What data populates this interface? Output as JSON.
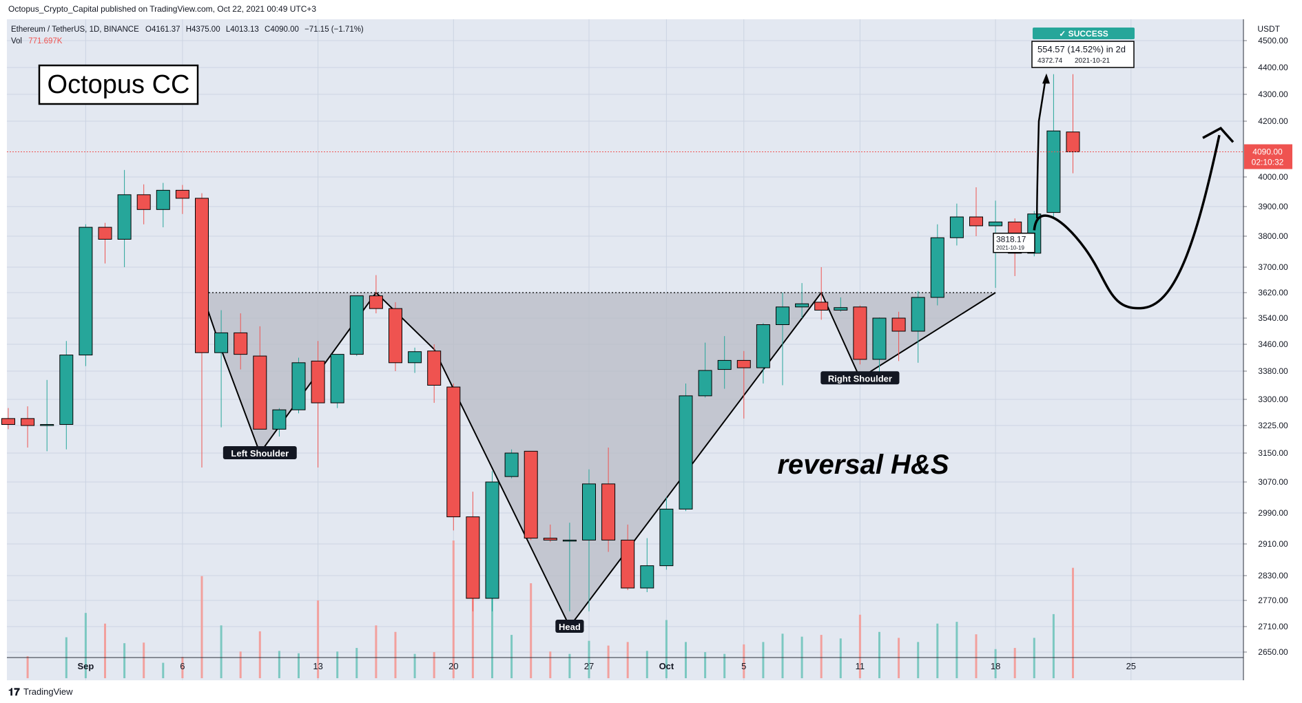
{
  "page": {
    "publisher_line": "Octopus_Crypto_Capital published on TradingView.com, Oct 22, 2021 00:49 UTC+3",
    "footer_brand": "TradingView"
  },
  "legend": {
    "symbol_line": "Ethereum / TetherUS, 1D, BINANCE",
    "o_label": "O",
    "o_value": "4161.37",
    "h_label": "H",
    "h_value": "4375.00",
    "l_label": "L",
    "l_value": "4013.13",
    "c_label": "C",
    "c_value": "4090.00",
    "change": "−71.15 (−1.71%)",
    "vol_label": "Vol",
    "vol_value": "771.697K"
  },
  "logo": {
    "text": "Octopus CC"
  },
  "colors": {
    "up": "#26a69a",
    "down": "#ef5350",
    "vol_up": "#7cc8c1",
    "vol_down": "#f2a09d",
    "grid": "#ccd4e2",
    "plot_bg": "#e3e8f1",
    "pattern_fill": "#b8bbc4"
  },
  "chart_data": {
    "type": "candlestick",
    "symbol": "Ethereum / TetherUS",
    "interval": "1D",
    "exchange": "BINANCE",
    "currency": "USDT",
    "y_axis_ticks": [
      4500,
      4400,
      4300,
      4200,
      4000,
      3900,
      3800,
      3700,
      3620,
      3540,
      3460,
      3380,
      3300,
      3225,
      3150,
      3070,
      2990,
      2910,
      2830,
      2770,
      2710,
      2650
    ],
    "y_axis_labels": [
      "4500.00",
      "4400.00",
      "4300.00",
      "4200.00",
      "4000.00",
      "3900.00",
      "3800.00",
      "3700.00",
      "3620.00",
      "3540.00",
      "3460.00",
      "3380.00",
      "3300.00",
      "3225.00",
      "3150.00",
      "3070.00",
      "2990.00",
      "2910.00",
      "2830.00",
      "2770.00",
      "2710.00",
      "2650.00"
    ],
    "x_axis_labels": [
      {
        "date": "2021-09-01",
        "label": "Sep"
      },
      {
        "date": "2021-09-06",
        "label": "6"
      },
      {
        "date": "2021-09-13",
        "label": "13"
      },
      {
        "date": "2021-09-20",
        "label": "20"
      },
      {
        "date": "2021-09-27",
        "label": "27"
      },
      {
        "date": "2021-10-01",
        "label": "Oct"
      },
      {
        "date": "2021-10-05",
        "label": "5"
      },
      {
        "date": "2021-10-11",
        "label": "11"
      },
      {
        "date": "2021-10-18",
        "label": "18"
      },
      {
        "date": "2021-10-25",
        "label": "25"
      }
    ],
    "candles": [
      {
        "date": "2021-08-28",
        "o": 3245,
        "h": 3275,
        "l": 3215,
        "c": 3228,
        "vol": 0
      },
      {
        "date": "2021-08-29",
        "o": 3245,
        "h": 3280,
        "l": 3165,
        "c": 3225,
        "vol": 37
      },
      {
        "date": "2021-08-30",
        "o": 3225,
        "h": 3355,
        "l": 3155,
        "c": 3228,
        "vol": 0
      },
      {
        "date": "2021-08-31",
        "o": 3228,
        "h": 3470,
        "l": 3160,
        "c": 3428,
        "vol": 69
      },
      {
        "date": "2021-09-01",
        "o": 3428,
        "h": 3840,
        "l": 3395,
        "c": 3830,
        "vol": 110
      },
      {
        "date": "2021-09-02",
        "o": 3830,
        "h": 3845,
        "l": 3712,
        "c": 3790,
        "vol": 92
      },
      {
        "date": "2021-09-03",
        "o": 3790,
        "h": 4025,
        "l": 3700,
        "c": 3940,
        "vol": 59
      },
      {
        "date": "2021-09-04",
        "o": 3940,
        "h": 3975,
        "l": 3840,
        "c": 3890,
        "vol": 60
      },
      {
        "date": "2021-09-05",
        "o": 3890,
        "h": 3980,
        "l": 3830,
        "c": 3955,
        "vol": 26
      },
      {
        "date": "2021-09-06",
        "o": 3955,
        "h": 3973,
        "l": 3875,
        "c": 3928,
        "vol": 36
      },
      {
        "date": "2021-09-07",
        "o": 3928,
        "h": 3945,
        "l": 3110,
        "c": 3435,
        "vol": 172
      },
      {
        "date": "2021-09-08",
        "o": 3435,
        "h": 3565,
        "l": 3220,
        "c": 3495,
        "vol": 89
      },
      {
        "date": "2021-09-09",
        "o": 3495,
        "h": 3555,
        "l": 3385,
        "c": 3430,
        "vol": 45
      },
      {
        "date": "2021-09-10",
        "o": 3425,
        "h": 3515,
        "l": 3215,
        "c": 3215,
        "vol": 79
      },
      {
        "date": "2021-09-11",
        "o": 3215,
        "h": 3275,
        "l": 3195,
        "c": 3270,
        "vol": 46
      },
      {
        "date": "2021-09-12",
        "o": 3270,
        "h": 3420,
        "l": 3260,
        "c": 3405,
        "vol": 42
      },
      {
        "date": "2021-09-13",
        "o": 3410,
        "h": 3470,
        "l": 3110,
        "c": 3290,
        "vol": 131
      },
      {
        "date": "2021-09-14",
        "o": 3290,
        "h": 3430,
        "l": 3275,
        "c": 3430,
        "vol": 45
      },
      {
        "date": "2021-09-15",
        "o": 3430,
        "h": 3600,
        "l": 3425,
        "c": 3610,
        "vol": 51
      },
      {
        "date": "2021-09-16",
        "o": 3610,
        "h": 3675,
        "l": 3555,
        "c": 3570,
        "vol": 89
      },
      {
        "date": "2021-09-17",
        "o": 3570,
        "h": 3590,
        "l": 3380,
        "c": 3405,
        "vol": 78
      },
      {
        "date": "2021-09-18",
        "o": 3405,
        "h": 3450,
        "l": 3375,
        "c": 3438,
        "vol": 41
      },
      {
        "date": "2021-09-19",
        "o": 3440,
        "h": 3460,
        "l": 3290,
        "c": 3340,
        "vol": 44
      },
      {
        "date": "2021-09-20",
        "o": 3335,
        "h": 3345,
        "l": 2945,
        "c": 2980,
        "vol": 232
      },
      {
        "date": "2021-09-21",
        "o": 2980,
        "h": 3045,
        "l": 2745,
        "c": 2775,
        "vol": 200
      },
      {
        "date": "2021-09-22",
        "o": 2775,
        "h": 3100,
        "l": 2745,
        "c": 3070,
        "vol": 138
      },
      {
        "date": "2021-09-23",
        "o": 3085,
        "h": 3160,
        "l": 3080,
        "c": 3150,
        "vol": 73
      },
      {
        "date": "2021-09-24",
        "o": 3155,
        "h": 3155,
        "l": 2920,
        "c": 2925,
        "vol": 160
      },
      {
        "date": "2021-09-25",
        "o": 2925,
        "h": 2960,
        "l": 2915,
        "c": 2920,
        "vol": 45
      },
      {
        "date": "2021-09-26",
        "o": 2920,
        "h": 2965,
        "l": 2745,
        "c": 2920,
        "vol": 41
      },
      {
        "date": "2021-09-27",
        "o": 2920,
        "h": 3105,
        "l": 2745,
        "c": 3065,
        "vol": 63
      },
      {
        "date": "2021-09-28",
        "o": 3065,
        "h": 3165,
        "l": 2890,
        "c": 2920,
        "vol": 55
      },
      {
        "date": "2021-09-29",
        "o": 2920,
        "h": 2960,
        "l": 2795,
        "c": 2800,
        "vol": 61
      },
      {
        "date": "2021-09-30",
        "o": 2800,
        "h": 2925,
        "l": 2790,
        "c": 2855,
        "vol": 46
      },
      {
        "date": "2021-10-01",
        "o": 2855,
        "h": 3030,
        "l": 2845,
        "c": 3000,
        "vol": 98
      },
      {
        "date": "2021-10-02",
        "o": 3000,
        "h": 3345,
        "l": 2995,
        "c": 3310,
        "vol": 61
      },
      {
        "date": "2021-10-03",
        "o": 3310,
        "h": 3465,
        "l": 3305,
        "c": 3382,
        "vol": 44
      },
      {
        "date": "2021-10-04",
        "o": 3385,
        "h": 3485,
        "l": 3330,
        "c": 3412,
        "vol": 41
      },
      {
        "date": "2021-10-05",
        "o": 3412,
        "h": 3440,
        "l": 3245,
        "c": 3390,
        "vol": 57
      },
      {
        "date": "2021-10-06",
        "o": 3390,
        "h": 3525,
        "l": 3345,
        "c": 3520,
        "vol": 61
      },
      {
        "date": "2021-10-07",
        "o": 3520,
        "h": 3620,
        "l": 3340,
        "c": 3575,
        "vol": 75
      },
      {
        "date": "2021-10-08",
        "o": 3575,
        "h": 3650,
        "l": 3540,
        "c": 3585,
        "vol": 70
      },
      {
        "date": "2021-10-09",
        "o": 3590,
        "h": 3700,
        "l": 3535,
        "c": 3565,
        "vol": 73
      },
      {
        "date": "2021-10-10",
        "o": 3565,
        "h": 3605,
        "l": 3560,
        "c": 3573,
        "vol": 67
      },
      {
        "date": "2021-10-11",
        "o": 3575,
        "h": 3580,
        "l": 3400,
        "c": 3415,
        "vol": 107
      },
      {
        "date": "2021-10-12",
        "o": 3415,
        "h": 3542,
        "l": 3365,
        "c": 3540,
        "vol": 78
      },
      {
        "date": "2021-10-13",
        "o": 3540,
        "h": 3560,
        "l": 3410,
        "c": 3500,
        "vol": 68
      },
      {
        "date": "2021-10-14",
        "o": 3500,
        "h": 3625,
        "l": 3405,
        "c": 3605,
        "vol": 61
      },
      {
        "date": "2021-10-15",
        "o": 3605,
        "h": 3840,
        "l": 3580,
        "c": 3795,
        "vol": 92
      },
      {
        "date": "2021-10-16",
        "o": 3795,
        "h": 3910,
        "l": 3770,
        "c": 3865,
        "vol": 95
      },
      {
        "date": "2021-10-17",
        "o": 3865,
        "h": 3965,
        "l": 3800,
        "c": 3835,
        "vol": 74
      },
      {
        "date": "2021-10-18",
        "o": 3835,
        "h": 3920,
        "l": 3635,
        "c": 3848,
        "vol": 49
      },
      {
        "date": "2021-10-19",
        "o": 3848,
        "h": 3860,
        "l": 3672,
        "c": 3745,
        "vol": 51
      },
      {
        "date": "2021-10-20",
        "o": 3745,
        "h": 3885,
        "l": 3735,
        "c": 3875,
        "vol": 68
      },
      {
        "date": "2021-10-21",
        "o": 3880,
        "h": 4375,
        "l": 3865,
        "c": 4165,
        "vol": 108
      },
      {
        "date": "2021-10-22",
        "o": 4161.37,
        "h": 4375,
        "l": 4013.13,
        "c": 4090,
        "vol": 186
      }
    ],
    "price_line": {
      "value": 4090.0,
      "label": "4090.00",
      "countdown": "02:10:32"
    },
    "neckline": {
      "value": 3620,
      "from": "2021-09-07",
      "to": "2021-10-18"
    },
    "pattern": {
      "name": "reversal H&S",
      "labels": [
        {
          "text": "Left Shoulder",
          "date": "2021-09-10",
          "value": 3150
        },
        {
          "text": "Head",
          "date": "2021-09-26",
          "value": 2710
        },
        {
          "text": "Right Shoulder",
          "date": "2021-10-11",
          "value": 3360
        }
      ]
    },
    "success_box": {
      "badge": "✓ SUCCESS",
      "line1": "554.57 (14.52%) in 2d",
      "price": "4372.74",
      "date": "2021-10-21"
    },
    "entry_box": {
      "line1": "3818.17",
      "date": "2021-10-19"
    }
  }
}
